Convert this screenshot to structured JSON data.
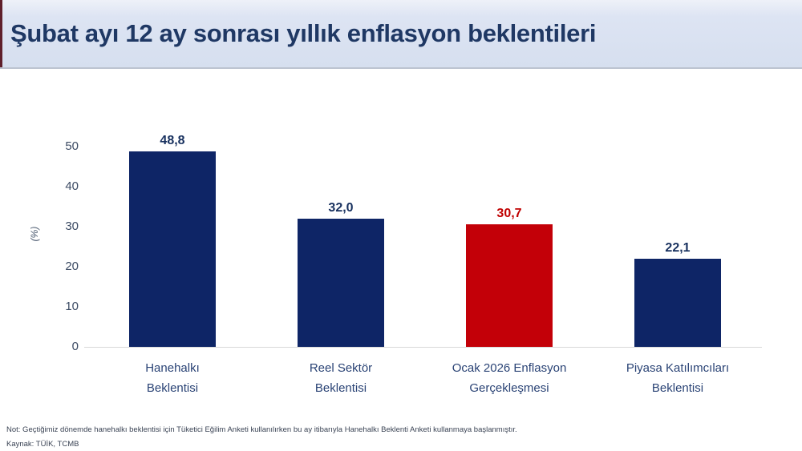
{
  "header": {
    "title": "Şubat ayı 12 ay sonrası yıllık enflasyon beklentileri",
    "title_color": "#1f3864",
    "background_color": "#d9e1f0",
    "accent_color": "#5f1f2b"
  },
  "chart_data": {
    "type": "bar",
    "title": "Şubat ayı 12 ay sonrası yıllık enflasyon beklentileri",
    "xlabel": "",
    "ylabel": "(%)",
    "ylim": [
      0,
      50
    ],
    "yticks": [
      0,
      10,
      20,
      30,
      40,
      50
    ],
    "grid": false,
    "legend": false,
    "categories": [
      "Hanehalkı Beklentisi",
      "Reel Sektör Beklentisi",
      "Ocak 2026 Enflasyon Gerçekleşmesi",
      "Piyasa Katılımcıları Beklentisi"
    ],
    "category_lines": [
      [
        "Hanehalkı",
        "Beklentisi"
      ],
      [
        "Reel Sektör",
        "Beklentisi"
      ],
      [
        "Ocak 2026 Enflasyon",
        "Gerçekleşmesi"
      ],
      [
        "Piyasa Katılımcıları",
        "Beklentisi"
      ]
    ],
    "values": [
      48.8,
      32.0,
      30.7,
      22.1
    ],
    "value_labels": [
      "48,8",
      "32,0",
      "30,7",
      "22,1"
    ],
    "bar_colors": [
      "#0e2566",
      "#0e2566",
      "#c30008",
      "#0e2566"
    ],
    "value_label_colors": [
      "#17305e",
      "#17305e",
      "#c00000",
      "#17305e"
    ],
    "axis_line_color": "#d9d9d9",
    "tick_label_color": "#3b4a63"
  },
  "footer": {
    "note": "Not: Geçtiğimiz dönemde hanehalkı beklentisi için Tüketici Eğilim Anketi kullanılırken bu ay itibarıyla Hanehalkı Beklenti Anketi kullanmaya başlanmıştır.",
    "source": "Kaynak: TÜİK, TCMB"
  }
}
